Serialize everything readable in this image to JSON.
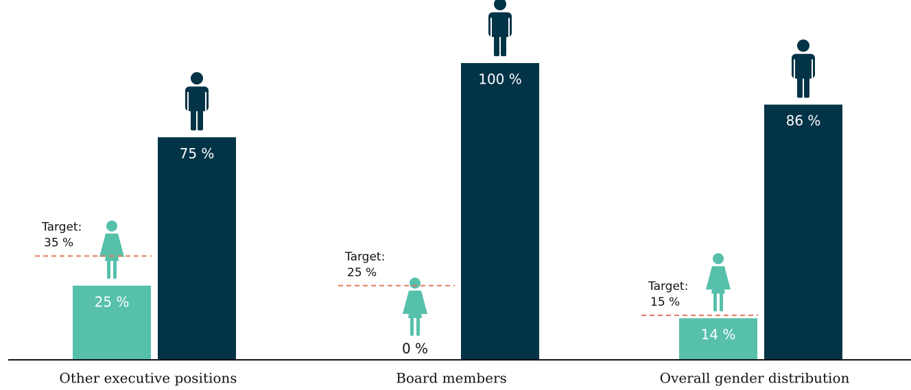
{
  "chart_data": {
    "type": "bar",
    "categories": [
      "Other executive positions",
      "Board members",
      "Overall gender distribution"
    ],
    "series": [
      {
        "color": "#56c0ab",
        "values": [
          25,
          0,
          14
        ],
        "value_labels": [
          "25 %",
          "0 %",
          "14 %"
        ]
      },
      {
        "color": "#023347",
        "values": [
          75,
          100,
          86
        ],
        "value_labels": [
          "75 %",
          "100 %",
          "86 %"
        ]
      }
    ],
    "target_label": "Target:",
    "targets": [
      35,
      25,
      15
    ],
    "target_value_labels": [
      "35 %",
      "25 %",
      "15 %"
    ],
    "target_color": "#e07a5f",
    "ylim": [
      0,
      100
    ]
  }
}
